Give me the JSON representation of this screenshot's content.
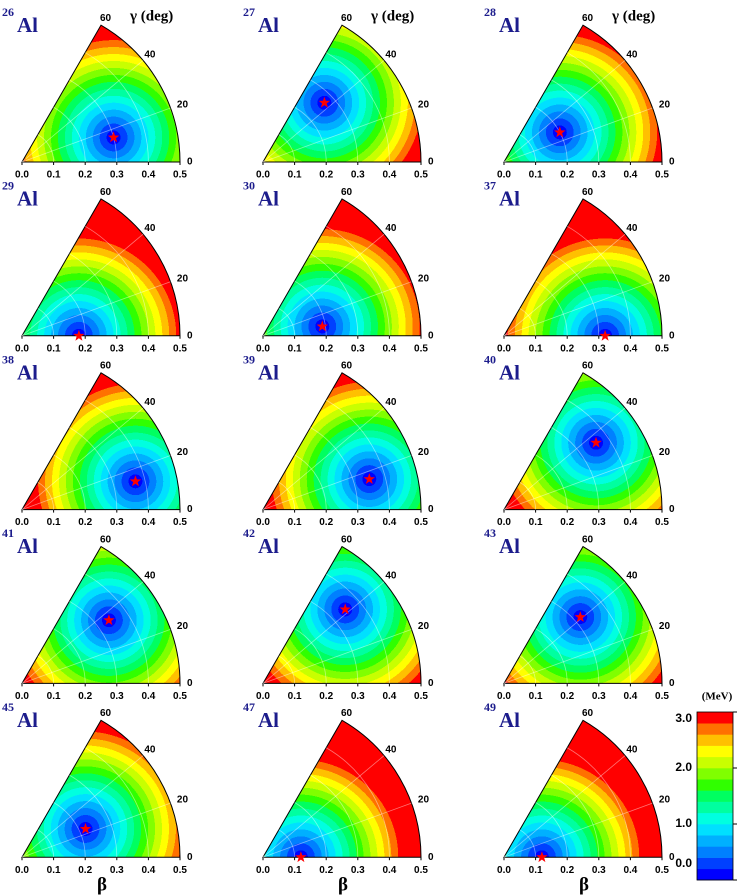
{
  "chart_data": [
    {
      "type": "polar-sector",
      "mass": "26",
      "title": "Al",
      "ylabel": "γ (deg)",
      "xlim": [
        0,
        0.5
      ],
      "xticks": [
        {
          "value": 0,
          "label": "0.0"
        },
        {
          "value": 0.1,
          "label": "0.1"
        },
        {
          "value": 0.2,
          "label": "0.2"
        },
        {
          "value": 0.3,
          "label": "0.3"
        },
        {
          "value": 0.4,
          "label": "0.4"
        },
        {
          "value": 0.5,
          "label": "0.5"
        }
      ],
      "ylim": [
        0,
        60
      ],
      "yticks": [
        0,
        20,
        40,
        60
      ],
      "x": [
        0.3
      ],
      "y": [
        15
      ],
      "star_color": "#ff0000",
      "title_color": "#1c1c8c"
    },
    {
      "type": "polar-sector",
      "mass": "27",
      "title": "Al",
      "ylabel": "γ (deg)",
      "xlim": [
        0,
        0.5
      ],
      "xticks": [
        {
          "value": 0,
          "label": "0.0"
        },
        {
          "value": 0.1,
          "label": "0.1"
        },
        {
          "value": 0.2,
          "label": "0.2"
        },
        {
          "value": 0.3,
          "label": "0.3"
        },
        {
          "value": 0.4,
          "label": "0.4"
        },
        {
          "value": 0.5,
          "label": "0.5"
        }
      ],
      "ylim": [
        0,
        60
      ],
      "yticks": [
        0,
        20,
        40,
        60
      ],
      "x": [
        0.27
      ],
      "y": [
        44
      ],
      "star_color": "#ff0000",
      "title_color": "#1c1c8c"
    },
    {
      "type": "polar-sector",
      "mass": "28",
      "title": "Al",
      "ylabel": "γ (deg)",
      "xlim": [
        0,
        0.5
      ],
      "xticks": [
        {
          "value": 0,
          "label": "0.0"
        },
        {
          "value": 0.1,
          "label": "0.1"
        },
        {
          "value": 0.2,
          "label": "0.2"
        },
        {
          "value": 0.3,
          "label": "0.3"
        },
        {
          "value": 0.4,
          "label": "0.4"
        },
        {
          "value": 0.5,
          "label": "0.5"
        }
      ],
      "ylim": [
        0,
        60
      ],
      "yticks": [
        0,
        20,
        40,
        60
      ],
      "x": [
        0.2
      ],
      "y": [
        28
      ],
      "star_color": "#ff0000",
      "title_color": "#1c1c8c"
    },
    {
      "type": "polar-sector",
      "mass": "29",
      "title": "Al",
      "xlim": [
        0,
        0.5
      ],
      "xticks": [
        {
          "value": 0,
          "label": "0.0"
        },
        {
          "value": 0.1,
          "label": "0.1"
        },
        {
          "value": 0.2,
          "label": "0.2"
        },
        {
          "value": 0.3,
          "label": "0.3"
        },
        {
          "value": 0.4,
          "label": "0.4"
        },
        {
          "value": 0.5,
          "label": "0.5"
        }
      ],
      "ylim": [
        0,
        60
      ],
      "yticks": [
        0,
        20,
        40,
        60
      ],
      "x": [
        0.18
      ],
      "y": [
        0
      ],
      "star_color": "#ff0000",
      "title_color": "#1c1c8c"
    },
    {
      "type": "polar-sector",
      "mass": "30",
      "title": "Al",
      "xlim": [
        0,
        0.5
      ],
      "xticks": [
        {
          "value": 0,
          "label": "0.0"
        },
        {
          "value": 0.1,
          "label": "0.1"
        },
        {
          "value": 0.2,
          "label": "0.2"
        },
        {
          "value": 0.3,
          "label": "0.3"
        },
        {
          "value": 0.4,
          "label": "0.4"
        },
        {
          "value": 0.5,
          "label": "0.5"
        }
      ],
      "ylim": [
        0,
        60
      ],
      "yticks": [
        0,
        20,
        40,
        60
      ],
      "x": [
        0.19
      ],
      "y": [
        9
      ],
      "star_color": "#ff0000",
      "title_color": "#1c1c8c"
    },
    {
      "type": "polar-sector",
      "mass": "37",
      "title": "Al",
      "xlim": [
        0,
        0.5
      ],
      "xticks": [
        {
          "value": 0,
          "label": "0.0"
        },
        {
          "value": 0.1,
          "label": "0.1"
        },
        {
          "value": 0.2,
          "label": "0.2"
        },
        {
          "value": 0.3,
          "label": "0.3"
        },
        {
          "value": 0.4,
          "label": "0.4"
        },
        {
          "value": 0.5,
          "label": "0.5"
        }
      ],
      "ylim": [
        0,
        60
      ],
      "yticks": [
        0,
        20,
        40,
        60
      ],
      "x": [
        0.32
      ],
      "y": [
        0
      ],
      "star_color": "#ff0000",
      "title_color": "#1c1c8c"
    },
    {
      "type": "polar-sector",
      "mass": "38",
      "title": "Al",
      "xlim": [
        0,
        0.5
      ],
      "xticks": [
        {
          "value": 0,
          "label": "0.0"
        },
        {
          "value": 0.1,
          "label": "0.1"
        },
        {
          "value": 0.2,
          "label": "0.2"
        },
        {
          "value": 0.3,
          "label": "0.3"
        },
        {
          "value": 0.4,
          "label": "0.4"
        },
        {
          "value": 0.5,
          "label": "0.5"
        }
      ],
      "ylim": [
        0,
        60
      ],
      "yticks": [
        0,
        20,
        40,
        60
      ],
      "x": [
        0.37
      ],
      "y": [
        14
      ],
      "star_color": "#ff0000",
      "title_color": "#1c1c8c"
    },
    {
      "type": "polar-sector",
      "mass": "39",
      "title": "Al",
      "xlim": [
        0,
        0.5
      ],
      "xticks": [
        {
          "value": 0,
          "label": "0.0"
        },
        {
          "value": 0.1,
          "label": "0.1"
        },
        {
          "value": 0.2,
          "label": "0.2"
        },
        {
          "value": 0.3,
          "label": "0.3"
        },
        {
          "value": 0.4,
          "label": "0.4"
        },
        {
          "value": 0.5,
          "label": "0.5"
        }
      ],
      "ylim": [
        0,
        60
      ],
      "yticks": [
        0,
        20,
        40,
        60
      ],
      "x": [
        0.35
      ],
      "y": [
        16
      ],
      "star_color": "#ff0000",
      "title_color": "#1c1c8c"
    },
    {
      "type": "polar-sector",
      "mass": "40",
      "title": "Al",
      "xlim": [
        0,
        0.5
      ],
      "xticks": [
        {
          "value": 0,
          "label": "0.0"
        },
        {
          "value": 0.1,
          "label": "0.1"
        },
        {
          "value": 0.2,
          "label": "0.2"
        },
        {
          "value": 0.3,
          "label": "0.3"
        },
        {
          "value": 0.4,
          "label": "0.4"
        },
        {
          "value": 0.5,
          "label": "0.5"
        }
      ],
      "ylim": [
        0,
        60
      ],
      "yticks": [
        0,
        20,
        40,
        60
      ],
      "x": [
        0.36
      ],
      "y": [
        36
      ],
      "star_color": "#ff0000",
      "title_color": "#1c1c8c"
    },
    {
      "type": "polar-sector",
      "mass": "41",
      "title": "Al",
      "xlim": [
        0,
        0.5
      ],
      "xticks": [
        {
          "value": 0,
          "label": "0.0"
        },
        {
          "value": 0.1,
          "label": "0.1"
        },
        {
          "value": 0.2,
          "label": "0.2"
        },
        {
          "value": 0.3,
          "label": "0.3"
        },
        {
          "value": 0.4,
          "label": "0.4"
        },
        {
          "value": 0.5,
          "label": "0.5"
        }
      ],
      "ylim": [
        0,
        60
      ],
      "yticks": [
        0,
        20,
        40,
        60
      ],
      "x": [
        0.34
      ],
      "y": [
        36
      ],
      "star_color": "#ff0000",
      "title_color": "#1c1c8c"
    },
    {
      "type": "polar-sector",
      "mass": "42",
      "title": "Al",
      "xlim": [
        0,
        0.5
      ],
      "xticks": [
        {
          "value": 0,
          "label": "0.0"
        },
        {
          "value": 0.1,
          "label": "0.1"
        },
        {
          "value": 0.2,
          "label": "0.2"
        },
        {
          "value": 0.3,
          "label": "0.3"
        },
        {
          "value": 0.4,
          "label": "0.4"
        },
        {
          "value": 0.5,
          "label": "0.5"
        }
      ],
      "ylim": [
        0,
        60
      ],
      "yticks": [
        0,
        20,
        40,
        60
      ],
      "x": [
        0.35
      ],
      "y": [
        42
      ],
      "star_color": "#ff0000",
      "title_color": "#1c1c8c"
    },
    {
      "type": "polar-sector",
      "mass": "43",
      "title": "Al",
      "xlim": [
        0,
        0.5
      ],
      "xticks": [
        {
          "value": 0,
          "label": "0.0"
        },
        {
          "value": 0.1,
          "label": "0.1"
        },
        {
          "value": 0.2,
          "label": "0.2"
        },
        {
          "value": 0.3,
          "label": "0.3"
        },
        {
          "value": 0.4,
          "label": "0.4"
        },
        {
          "value": 0.5,
          "label": "0.5"
        }
      ],
      "ylim": [
        0,
        60
      ],
      "yticks": [
        0,
        20,
        40,
        60
      ],
      "x": [
        0.32
      ],
      "y": [
        41
      ],
      "star_color": "#ff0000",
      "title_color": "#1c1c8c"
    },
    {
      "type": "polar-sector",
      "mass": "45",
      "title": "Al",
      "xlabel": "β",
      "xlim": [
        0,
        0.5
      ],
      "xticks": [
        {
          "value": 0,
          "label": "0.0"
        },
        {
          "value": 0.1,
          "label": "0.1"
        },
        {
          "value": 0.2,
          "label": "0.2"
        },
        {
          "value": 0.3,
          "label": "0.3"
        },
        {
          "value": 0.4,
          "label": "0.4"
        },
        {
          "value": 0.5,
          "label": "0.5"
        }
      ],
      "ylim": [
        0,
        60
      ],
      "yticks": [
        0,
        20,
        40,
        60
      ],
      "x": [
        0.22
      ],
      "y": [
        24
      ],
      "star_color": "#ff0000",
      "title_color": "#1c1c8c"
    },
    {
      "type": "polar-sector",
      "mass": "47",
      "title": "Al",
      "xlabel": "β",
      "xlim": [
        0,
        0.5
      ],
      "xticks": [
        {
          "value": 0,
          "label": "0.0"
        },
        {
          "value": 0.1,
          "label": "0.1"
        },
        {
          "value": 0.2,
          "label": "0.2"
        },
        {
          "value": 0.3,
          "label": "0.3"
        },
        {
          "value": 0.4,
          "label": "0.4"
        },
        {
          "value": 0.5,
          "label": "0.5"
        }
      ],
      "ylim": [
        0,
        60
      ],
      "yticks": [
        0,
        20,
        40,
        60
      ],
      "x": [
        0.12
      ],
      "y": [
        0
      ],
      "star_color": "#ff0000",
      "title_color": "#1c1c8c"
    },
    {
      "type": "polar-sector",
      "mass": "49",
      "title": "Al",
      "xlabel": "β",
      "xlim": [
        0,
        0.5
      ],
      "xticks": [
        {
          "value": 0,
          "label": "0.0"
        },
        {
          "value": 0.1,
          "label": "0.1"
        },
        {
          "value": 0.2,
          "label": "0.2"
        },
        {
          "value": 0.3,
          "label": "0.3"
        },
        {
          "value": 0.4,
          "label": "0.4"
        },
        {
          "value": 0.5,
          "label": "0.5"
        }
      ],
      "ylim": [
        0,
        60
      ],
      "yticks": [
        0,
        20,
        40,
        60
      ],
      "x": [
        0.12
      ],
      "y": [
        0
      ],
      "star_color": "#ff0000",
      "title_color": "#1c1c8c"
    }
  ],
  "colorbar": {
    "label": "(MeV)",
    "lim": [
      0,
      3
    ],
    "ticks": [
      {
        "value": 0,
        "label": "0.0"
      },
      {
        "value": 1,
        "label": "1.0"
      },
      {
        "value": 2,
        "label": "2.0"
      },
      {
        "value": 3,
        "label": "3.0"
      }
    ],
    "colors": [
      "#0000ff",
      "#0040ff",
      "#0080ff",
      "#00b0ff",
      "#00e0ff",
      "#00ffe0",
      "#00ffa0",
      "#00ff60",
      "#30ff00",
      "#80ff00",
      "#c8ff00",
      "#ffff00",
      "#ffc000",
      "#ff7000",
      "#ff0000"
    ]
  }
}
